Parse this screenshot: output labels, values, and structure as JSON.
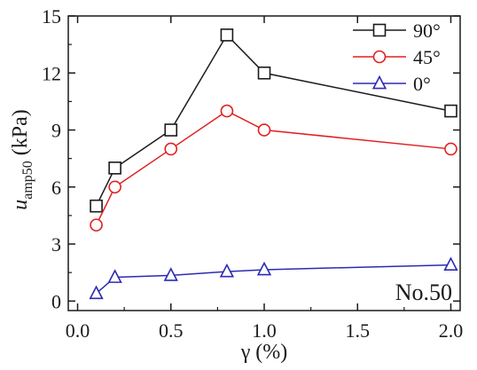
{
  "chart_data": {
    "type": "line",
    "title": "",
    "xlabel": "γ (%)",
    "ylabel": {
      "main": "u",
      "sub": "amp50",
      "unit": " (kPa)"
    },
    "xlim": [
      0.0,
      2.0
    ],
    "ylim": [
      0,
      15
    ],
    "xticks": [
      0.0,
      0.5,
      1.0,
      1.5,
      2.0
    ],
    "xtick_labels": [
      "0.0",
      "0.5",
      "1.0",
      "1.5",
      "2.0"
    ],
    "yticks": [
      0,
      3,
      6,
      9,
      12,
      15
    ],
    "ytick_labels": [
      "0",
      "3",
      "6",
      "9",
      "12",
      "15"
    ],
    "grid": false,
    "legend_position": "top-right",
    "annotation": "No.50",
    "series": [
      {
        "name": "90°",
        "color": "#1a1a1a",
        "marker": "square",
        "x": [
          0.1,
          0.2,
          0.5,
          0.8,
          1.0,
          2.0
        ],
        "y": [
          5,
          7,
          9,
          14,
          12,
          10
        ]
      },
      {
        "name": "45°",
        "color": "#e02020",
        "marker": "circle",
        "x": [
          0.1,
          0.2,
          0.5,
          0.8,
          1.0,
          2.0
        ],
        "y": [
          4,
          6,
          8,
          10,
          9,
          8
        ]
      },
      {
        "name": "0°",
        "color": "#2b2bb3",
        "marker": "triangle",
        "x": [
          0.1,
          0.2,
          0.5,
          0.8,
          1.0,
          2.0
        ],
        "y": [
          0.4,
          1.25,
          1.35,
          1.55,
          1.65,
          1.9
        ]
      }
    ]
  }
}
